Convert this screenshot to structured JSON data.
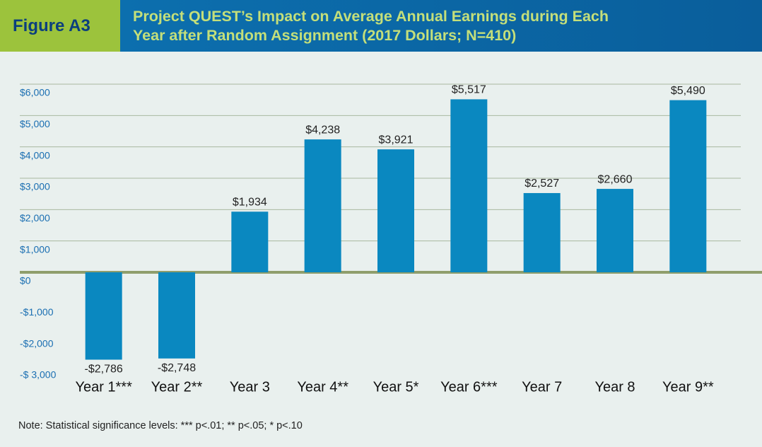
{
  "chart_data": {
    "type": "bar",
    "label": "Figure A3",
    "title": "Project QUEST’s Impact on Average Annual Earnings during Each Year after Random Assignment (2017 Dollars; N=410)",
    "categories": [
      "Year 1***",
      "Year 2**",
      "Year 3",
      "Year 4**",
      "Year 5*",
      "Year 6***",
      "Year 7",
      "Year 8",
      "Year 9**"
    ],
    "values": [
      -2786,
      -2748,
      1934,
      4238,
      3921,
      5517,
      2527,
      2660,
      5490
    ],
    "value_labels": [
      "-$2,786",
      "-$2,748",
      "$1,934",
      "$4,238",
      "$3,921",
      "$5,517",
      "$2,527",
      "$2,660",
      "$5,490"
    ],
    "color": "#0a88c0",
    "ylim": [
      -3000,
      6000
    ],
    "yticks": [
      {
        "value": 6000,
        "label": "$6,000"
      },
      {
        "value": 5000,
        "label": "$5,000"
      },
      {
        "value": 4000,
        "label": "$4,000"
      },
      {
        "value": 3000,
        "label": "$3,000"
      },
      {
        "value": 2000,
        "label": "$2,000"
      },
      {
        "value": 1000,
        "label": "$1,000"
      },
      {
        "value": 0,
        "label": "$0"
      },
      {
        "value": -1000,
        "label": "-$1,000"
      },
      {
        "value": -2000,
        "label": "-$2,000"
      },
      {
        "value": -3000,
        "label": "-$ 3,000"
      }
    ],
    "grid": true,
    "note": "Note: Statistical significance levels: *** p<.01; ** p<.05; * p<.10"
  }
}
